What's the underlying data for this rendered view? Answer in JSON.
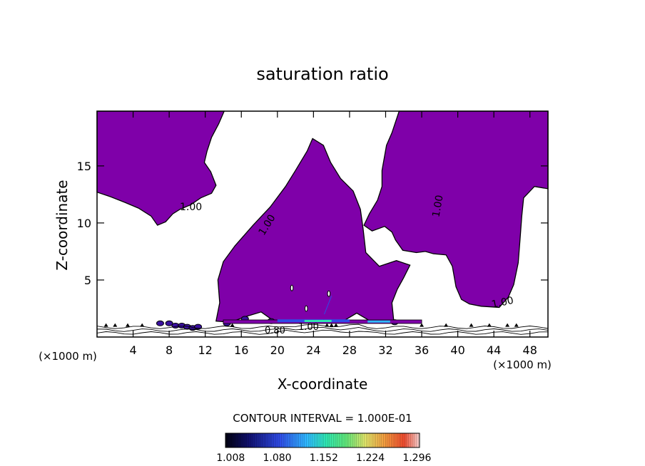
{
  "chart_data": {
    "type": "contour",
    "title": "saturation ratio",
    "xlabel": "X-coordinate",
    "ylabel": "Z-coordinate",
    "x_unit_label": "(×1000 m)",
    "x_ticks": [
      4,
      8,
      12,
      16,
      20,
      24,
      28,
      32,
      36,
      40,
      44,
      48
    ],
    "y_ticks": [
      5,
      10,
      15
    ],
    "xlim": [
      0,
      50
    ],
    "ylim": [
      0,
      19.8
    ],
    "contour_interval_text": "CONTOUR INTERVAL = 1.000E-01",
    "contour_labels": [
      "1.00",
      "1.00",
      "1.00",
      "1.00",
      "0.80",
      "1.00"
    ],
    "colorbar_labels": [
      "1.008",
      "1.080",
      "1.152",
      "1.224",
      "1.296"
    ],
    "colorbar_range": [
      1.0,
      1.3
    ],
    "colors": {
      "fill": "#7f00a9",
      "outline": "#000000"
    },
    "saturated_regions": [
      {
        "name": "upper-left",
        "points": [
          [
            0,
            19.8
          ],
          [
            14.1,
            19.8
          ],
          [
            13.5,
            18.7
          ],
          [
            12.7,
            17.5
          ],
          [
            12.2,
            16.3
          ],
          [
            11.9,
            15.3
          ],
          [
            12.6,
            14.5
          ],
          [
            13.2,
            13.3
          ],
          [
            12.7,
            12.6
          ],
          [
            11.5,
            12.2
          ],
          [
            10.4,
            11.6
          ],
          [
            9.2,
            11.2
          ],
          [
            8.4,
            10.8
          ],
          [
            7.6,
            10.1
          ],
          [
            6.7,
            9.8
          ],
          [
            6.0,
            10.6
          ],
          [
            4.6,
            11.3
          ],
          [
            3.1,
            11.8
          ],
          [
            1.5,
            12.3
          ],
          [
            0,
            12.7
          ]
        ]
      },
      {
        "name": "upper-right",
        "points": [
          [
            50,
            19.8
          ],
          [
            50,
            13.0
          ],
          [
            48.5,
            13.2
          ],
          [
            47.3,
            12.2
          ],
          [
            47.1,
            10.6
          ],
          [
            46.9,
            8.5
          ],
          [
            46.7,
            6.5
          ],
          [
            46.2,
            4.6
          ],
          [
            45.6,
            3.5
          ],
          [
            44.6,
            2.6
          ],
          [
            42.6,
            2.7
          ],
          [
            41.3,
            2.9
          ],
          [
            40.4,
            3.3
          ],
          [
            39.8,
            4.4
          ],
          [
            39.4,
            6.2
          ],
          [
            38.7,
            7.2
          ],
          [
            37.3,
            7.3
          ],
          [
            36.4,
            7.5
          ],
          [
            35.4,
            7.4
          ],
          [
            33.9,
            7.6
          ],
          [
            33.1,
            8.5
          ],
          [
            32.7,
            9.2
          ],
          [
            31.9,
            9.7
          ],
          [
            30.5,
            9.3
          ],
          [
            29.6,
            9.8
          ],
          [
            30.2,
            10.8
          ],
          [
            31.1,
            12.0
          ],
          [
            31.6,
            13.2
          ],
          [
            31.6,
            14.6
          ],
          [
            32.1,
            16.8
          ],
          [
            32.7,
            17.9
          ],
          [
            33.5,
            19.8
          ]
        ]
      },
      {
        "name": "central",
        "points": [
          [
            13.2,
            1.4
          ],
          [
            13.6,
            3.0
          ],
          [
            13.4,
            5.0
          ],
          [
            14.0,
            6.6
          ],
          [
            15.3,
            8.0
          ],
          [
            17.3,
            9.8
          ],
          [
            19.2,
            11.4
          ],
          [
            20.9,
            13.2
          ],
          [
            22.0,
            14.6
          ],
          [
            23.3,
            16.3
          ],
          [
            23.9,
            17.4
          ],
          [
            25.1,
            16.8
          ],
          [
            25.9,
            15.3
          ],
          [
            27.0,
            13.9
          ],
          [
            28.4,
            12.8
          ],
          [
            29.2,
            11.2
          ],
          [
            29.5,
            9.5
          ],
          [
            29.8,
            7.4
          ],
          [
            31.3,
            6.2
          ],
          [
            33.2,
            6.7
          ],
          [
            34.7,
            6.3
          ],
          [
            34.0,
            5.2
          ],
          [
            33.3,
            4.2
          ],
          [
            32.7,
            3.0
          ],
          [
            32.9,
            1.4
          ],
          [
            30.5,
            1.3
          ],
          [
            28.8,
            2.1
          ],
          [
            27.3,
            1.4
          ],
          [
            25.1,
            1.5
          ],
          [
            23.0,
            1.3
          ],
          [
            19.8,
            1.3
          ],
          [
            18.2,
            2.2
          ],
          [
            16.5,
            1.8
          ],
          [
            14.8,
            1.3
          ]
        ]
      }
    ]
  }
}
